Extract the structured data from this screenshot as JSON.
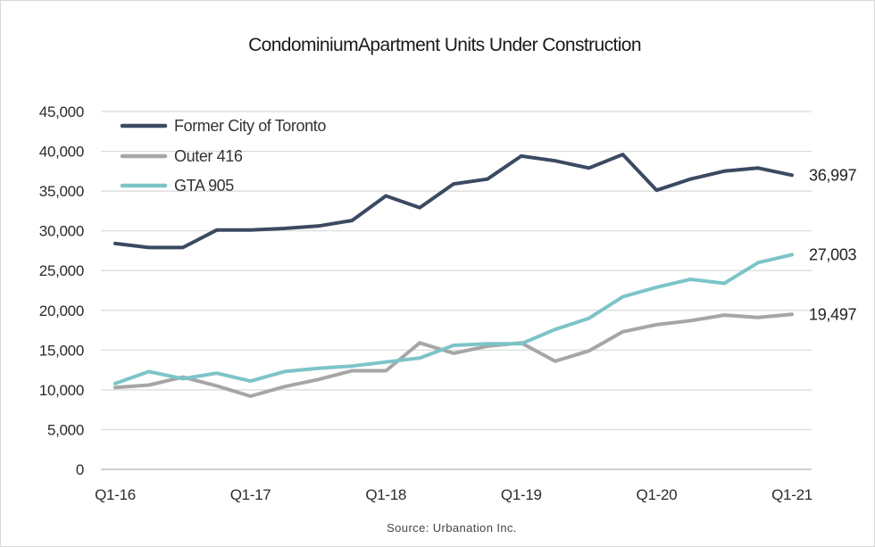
{
  "chart_data": {
    "type": "line",
    "title": "CondominiumApartment Units Under Construction",
    "source": "Source: Urbanation Inc.",
    "ylim": [
      0,
      45000
    ],
    "y_ticks": [
      "0",
      "5,000",
      "10,000",
      "15,000",
      "20,000",
      "25,000",
      "30,000",
      "35,000",
      "40,000",
      "45,000"
    ],
    "y_tick_values": [
      0,
      5000,
      10000,
      15000,
      20000,
      25000,
      30000,
      35000,
      40000,
      45000
    ],
    "x_tick_labels": [
      "Q1-16",
      "Q1-17",
      "Q1-18",
      "Q1-19",
      "Q1-20",
      "Q1-21"
    ],
    "x_tick_index": [
      0,
      4,
      8,
      12,
      16,
      20
    ],
    "x": [
      "Q1-16",
      "Q2-16",
      "Q3-16",
      "Q4-16",
      "Q1-17",
      "Q2-17",
      "Q3-17",
      "Q4-17",
      "Q1-18",
      "Q2-18",
      "Q3-18",
      "Q4-18",
      "Q1-19",
      "Q2-19",
      "Q3-19",
      "Q4-19",
      "Q1-20",
      "Q2-20",
      "Q3-20",
      "Q4-20",
      "Q1-21"
    ],
    "grid": true,
    "legend_position": "top-left",
    "series": [
      {
        "name": "Former City of Toronto",
        "color": "#3b4a62",
        "values": [
          28400,
          27900,
          27900,
          30100,
          30100,
          30300,
          30600,
          31300,
          34400,
          32900,
          35900,
          36500,
          39400,
          38800,
          37900,
          39600,
          35100,
          36500,
          37500,
          37900,
          36997
        ],
        "end_label": "36,997"
      },
      {
        "name": "Outer 416",
        "color": "#a6a6a6",
        "values": [
          10300,
          10600,
          11600,
          10500,
          9200,
          10400,
          11300,
          12400,
          12400,
          15900,
          14600,
          15500,
          15900,
          13600,
          14900,
          17300,
          18200,
          18700,
          19400,
          19100,
          19497
        ],
        "end_label": "19,497"
      },
      {
        "name": "GTA 905",
        "color": "#7cc4c8",
        "values": [
          10800,
          12300,
          11400,
          12100,
          11100,
          12300,
          12700,
          13000,
          13500,
          14000,
          15600,
          15800,
          15800,
          17600,
          19000,
          21700,
          22900,
          23900,
          23400,
          26000,
          27003
        ],
        "end_label": "27,003"
      }
    ]
  }
}
